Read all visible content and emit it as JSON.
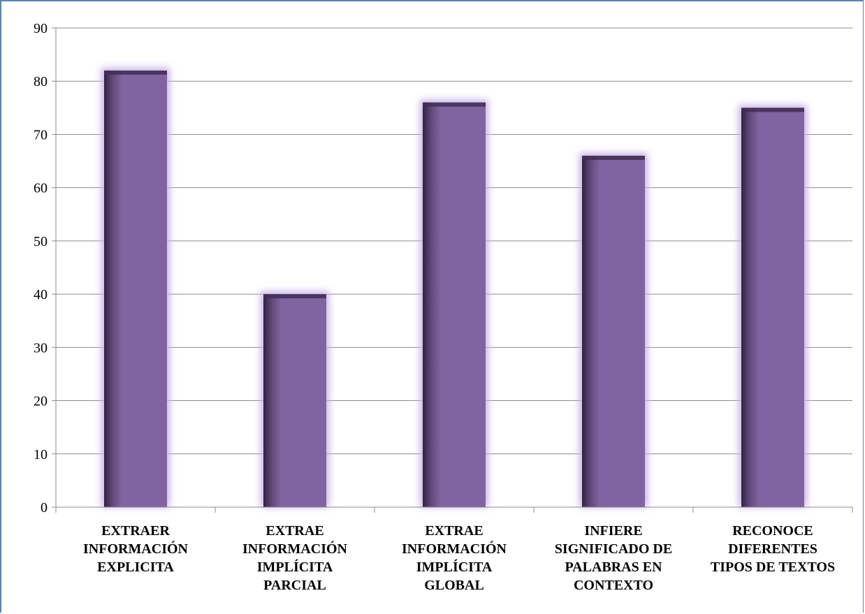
{
  "chart_data": {
    "type": "bar",
    "categories": [
      [
        "EXTRAER",
        "INFORMACIÓN",
        "EXPLICITA"
      ],
      [
        "EXTRAE",
        "INFORMACIÓN",
        "IMPLÍCITA",
        "PARCIAL"
      ],
      [
        "EXTRAE",
        "INFORMACIÓN",
        "IMPLÍCITA",
        "GLOBAL"
      ],
      [
        "INFIERE",
        "SIGNIFICADO DE",
        "PALABRAS EN",
        "CONTEXTO"
      ],
      [
        "RECONOCE",
        "DIFERENTES",
        "TIPOS DE TEXTOS"
      ]
    ],
    "values": [
      82,
      40,
      76,
      66,
      75
    ],
    "ylim": [
      0,
      90
    ],
    "yticks": [
      0,
      10,
      20,
      30,
      40,
      50,
      60,
      70,
      80,
      90
    ],
    "grid": true,
    "legend": "none",
    "bar_color": "#8064a2",
    "bar_dark_color": "#3f2f52",
    "glow_color": "#c9b3e6",
    "title": "",
    "xlabel": "",
    "ylabel": ""
  }
}
